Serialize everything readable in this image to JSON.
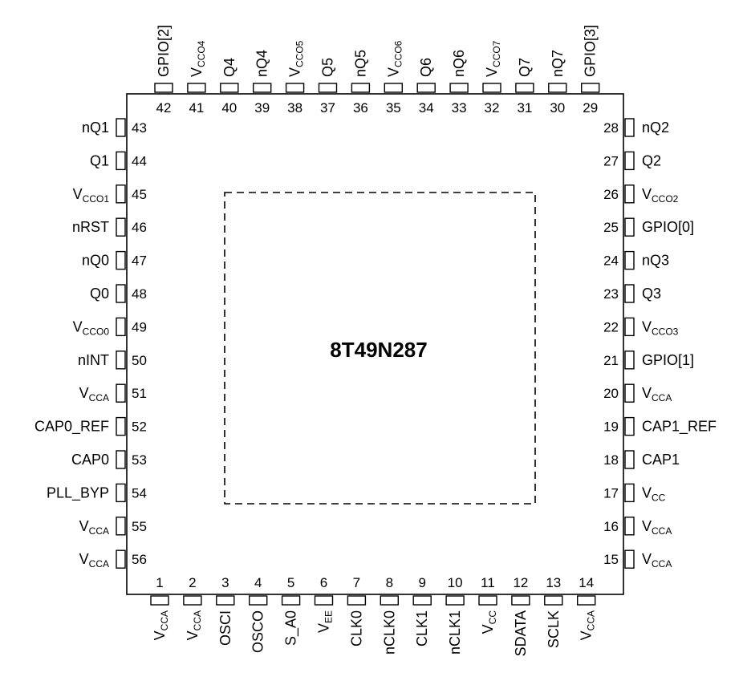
{
  "chip": {
    "part_number": "8T49N287"
  },
  "pins": {
    "bottom": [
      {
        "num": "1",
        "name": "V",
        "sub": "CCA"
      },
      {
        "num": "2",
        "name": "V",
        "sub": "CCA"
      },
      {
        "num": "3",
        "name": "OSCI"
      },
      {
        "num": "4",
        "name": "OSCO"
      },
      {
        "num": "5",
        "name": "S_A0"
      },
      {
        "num": "6",
        "name": "V",
        "sub": "EE"
      },
      {
        "num": "7",
        "name": "CLK0"
      },
      {
        "num": "8",
        "name": "nCLK0"
      },
      {
        "num": "9",
        "name": "CLK1"
      },
      {
        "num": "10",
        "name": "nCLK1"
      },
      {
        "num": "11",
        "name": "V",
        "sub": "CC"
      },
      {
        "num": "12",
        "name": "SDATA"
      },
      {
        "num": "13",
        "name": "SCLK"
      },
      {
        "num": "14",
        "name": "V",
        "sub": "CCA"
      }
    ],
    "right": [
      {
        "num": "15",
        "name": "V",
        "sub": "CCA"
      },
      {
        "num": "16",
        "name": "V",
        "sub": "CCA"
      },
      {
        "num": "17",
        "name": "V",
        "sub": "CC"
      },
      {
        "num": "18",
        "name": "CAP1"
      },
      {
        "num": "19",
        "name": "CAP1_REF"
      },
      {
        "num": "20",
        "name": "V",
        "sub": "CCA"
      },
      {
        "num": "21",
        "name": "GPIO[1]"
      },
      {
        "num": "22",
        "name": "V",
        "sub": "CCO3"
      },
      {
        "num": "23",
        "name": "Q3"
      },
      {
        "num": "24",
        "name": "nQ3"
      },
      {
        "num": "25",
        "name": "GPIO[0]"
      },
      {
        "num": "26",
        "name": "V",
        "sub": "CCO2"
      },
      {
        "num": "27",
        "name": "Q2"
      },
      {
        "num": "28",
        "name": "nQ2"
      }
    ],
    "top": [
      {
        "num": "29",
        "name": "GPIO[3]"
      },
      {
        "num": "30",
        "name": "nQ7"
      },
      {
        "num": "31",
        "name": "Q7"
      },
      {
        "num": "32",
        "name": "V",
        "sub": "CCO7"
      },
      {
        "num": "33",
        "name": "nQ6"
      },
      {
        "num": "34",
        "name": "Q6"
      },
      {
        "num": "35",
        "name": "V",
        "sub": "CCO6"
      },
      {
        "num": "36",
        "name": "nQ5"
      },
      {
        "num": "37",
        "name": "Q5"
      },
      {
        "num": "38",
        "name": "V",
        "sub": "CCO5"
      },
      {
        "num": "39",
        "name": "nQ4"
      },
      {
        "num": "40",
        "name": "Q4"
      },
      {
        "num": "41",
        "name": "V",
        "sub": "CCO4"
      },
      {
        "num": "42",
        "name": "GPIO[2]"
      }
    ],
    "left": [
      {
        "num": "43",
        "name": "nQ1"
      },
      {
        "num": "44",
        "name": "Q1"
      },
      {
        "num": "45",
        "name": "V",
        "sub": "CCO1"
      },
      {
        "num": "46",
        "name": "nRST"
      },
      {
        "num": "47",
        "name": "nQ0"
      },
      {
        "num": "48",
        "name": "Q0"
      },
      {
        "num": "49",
        "name": "V",
        "sub": "CCO0"
      },
      {
        "num": "50",
        "name": "nINT"
      },
      {
        "num": "51",
        "name": "V",
        "sub": "CCA"
      },
      {
        "num": "52",
        "name": "CAP0_REF"
      },
      {
        "num": "53",
        "name": "CAP0"
      },
      {
        "num": "54",
        "name": "PLL_BYP"
      },
      {
        "num": "55",
        "name": "V",
        "sub": "CCA"
      },
      {
        "num": "56",
        "name": "V",
        "sub": "CCA"
      }
    ]
  }
}
